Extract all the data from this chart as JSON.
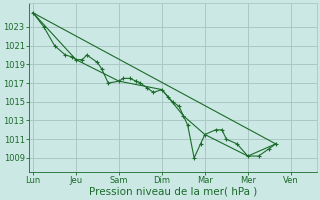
{
  "background_color": "#cce8e4",
  "grid_color": "#aac8c4",
  "line_color": "#1a6b2a",
  "marker_color": "#1a6b2a",
  "xlabel": "Pression niveau de la mer( hPa )",
  "xlabel_fontsize": 7.5,
  "ylim": [
    1007.5,
    1025.5
  ],
  "yticks": [
    1009,
    1011,
    1013,
    1015,
    1017,
    1019,
    1021,
    1023
  ],
  "ytick_fontsize": 6,
  "xtick_labels": [
    "Lun",
    "Jeu",
    "Sam",
    "Dim",
    "Mar",
    "Mer",
    "Ven"
  ],
  "xtick_positions": [
    0,
    1,
    2,
    3,
    4,
    5,
    6
  ],
  "xtick_fontsize": 6,
  "xlim": [
    -0.1,
    6.6
  ],
  "series_main": [
    [
      0.0,
      1024.5
    ],
    [
      0.25,
      1023.0
    ],
    [
      0.5,
      1021.0
    ],
    [
      0.75,
      1020.0
    ],
    [
      0.9,
      1019.8
    ],
    [
      1.0,
      1019.5
    ],
    [
      1.15,
      1019.5
    ],
    [
      1.25,
      1020.0
    ],
    [
      1.5,
      1019.2
    ],
    [
      1.6,
      1018.5
    ],
    [
      1.75,
      1017.0
    ],
    [
      2.0,
      1017.2
    ],
    [
      2.1,
      1017.5
    ],
    [
      2.25,
      1017.5
    ],
    [
      2.4,
      1017.2
    ],
    [
      2.5,
      1017.0
    ],
    [
      2.65,
      1016.5
    ],
    [
      2.8,
      1016.0
    ],
    [
      3.0,
      1016.3
    ],
    [
      3.15,
      1015.5
    ],
    [
      3.25,
      1015.0
    ],
    [
      3.4,
      1014.5
    ],
    [
      3.5,
      1013.5
    ],
    [
      3.6,
      1012.5
    ],
    [
      3.75,
      1009.0
    ],
    [
      3.9,
      1010.5
    ],
    [
      4.0,
      1011.5
    ],
    [
      4.25,
      1012.0
    ],
    [
      4.4,
      1012.0
    ],
    [
      4.5,
      1011.0
    ],
    [
      4.75,
      1010.5
    ],
    [
      5.0,
      1009.2
    ],
    [
      5.25,
      1009.2
    ],
    [
      5.5,
      1010.0
    ],
    [
      5.65,
      1010.5
    ]
  ],
  "series_smooth": [
    [
      0.0,
      1024.5
    ],
    [
      1.0,
      1019.5
    ],
    [
      2.0,
      1017.2
    ],
    [
      3.0,
      1016.3
    ],
    [
      3.5,
      1013.5
    ],
    [
      4.0,
      1011.5
    ],
    [
      5.0,
      1009.2
    ],
    [
      5.65,
      1010.5
    ]
  ],
  "series_trend": [
    [
      0.0,
      1024.5
    ],
    [
      5.65,
      1010.5
    ]
  ]
}
